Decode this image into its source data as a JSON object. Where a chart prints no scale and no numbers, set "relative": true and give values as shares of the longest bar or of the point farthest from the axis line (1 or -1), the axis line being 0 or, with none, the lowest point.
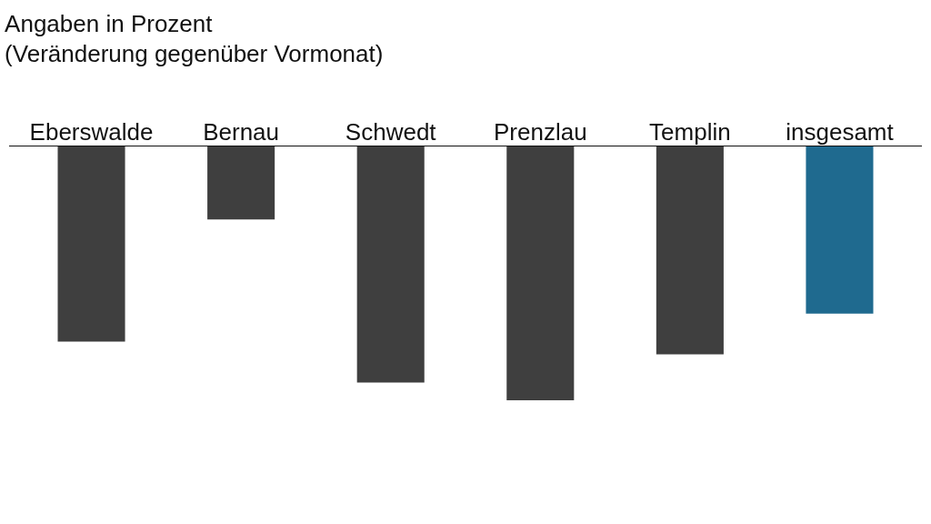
{
  "chart_data": {
    "type": "bar",
    "relative": true,
    "title": "Angaben in Prozent",
    "subtitle": "(Veränderung gegenüber Vormonat)",
    "categories": [
      "Eberswalde",
      "Bernau",
      "Schwedt",
      "Prenzlau",
      "Templin",
      "insgesamt"
    ],
    "values": [
      -0.77,
      -0.29,
      -0.93,
      -1,
      -0.82,
      -0.66
    ],
    "colors": [
      "#3f3f3f",
      "#3f3f3f",
      "#3f3f3f",
      "#3f3f3f",
      "#3f3f3f",
      "#1f6a8f"
    ]
  }
}
